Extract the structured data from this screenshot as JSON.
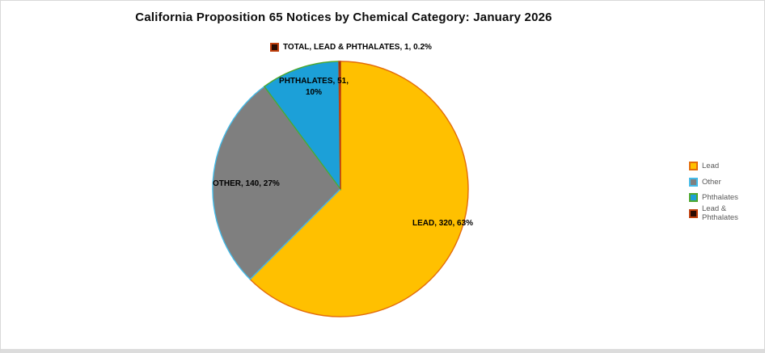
{
  "title": "California Proposition 65 Notices by Chemical Category: January 2026",
  "chart_data": {
    "type": "pie",
    "title": "California Proposition 65 Notices by Chemical Category: January 2026",
    "total": 512,
    "start_angle_deg": 0,
    "direction": "clockwise",
    "grid": false,
    "legend_position": "right",
    "slices": [
      {
        "name": "Lead",
        "value": 320,
        "pct": 62.5,
        "pct_label": "63%",
        "color": "#FFC000",
        "border": "#E36C0A",
        "label": "LEAD, 320, 63%"
      },
      {
        "name": "Other",
        "value": 140,
        "pct": 27.3,
        "pct_label": "27%",
        "color": "#7F7F7F",
        "border": "#44BBE8",
        "label": "OTHER, 140, 27%"
      },
      {
        "name": "Phthalates",
        "value": 51,
        "pct": 10.0,
        "pct_label": "10%",
        "color": "#1CA0D8",
        "border": "#4EA72E",
        "label": "PHTHALATES, 51, 10%"
      },
      {
        "name": "Lead & Phthalates",
        "value": 1,
        "pct": 0.2,
        "pct_label": "0.2%",
        "color": "#2B0B02",
        "border": "#C0400E",
        "label": "TOTAL, LEAD & PHTHALATES, 1, 0.2%"
      }
    ],
    "legend": [
      "Lead",
      "Other",
      "Phthalates",
      "Lead & Phthalates"
    ]
  }
}
